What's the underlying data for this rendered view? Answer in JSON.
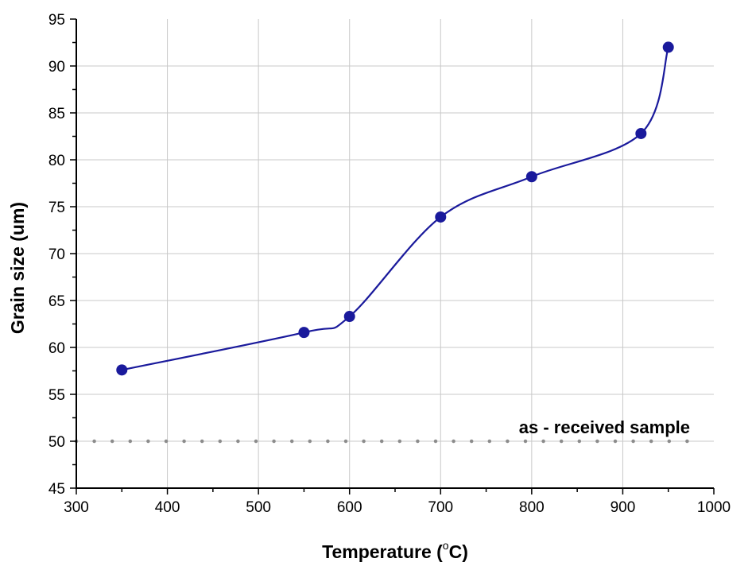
{
  "chart_data": {
    "type": "line",
    "xlabel": "Temperature (",
    "xlabel_sup": "o",
    "xlabel_end": "C)",
    "ylabel": "Grain size (um)",
    "xlim": [
      300,
      1000
    ],
    "ylim": [
      45,
      95
    ],
    "x_ticks": [
      300,
      400,
      500,
      600,
      700,
      800,
      900,
      1000
    ],
    "y_ticks": [
      45,
      50,
      55,
      60,
      65,
      70,
      75,
      80,
      85,
      90,
      95
    ],
    "grid": true,
    "series": [
      {
        "name": "",
        "color": "#1a1a9c",
        "x": [
          350,
          550,
          600,
          700,
          800,
          920,
          950
        ],
        "y": [
          57.6,
          61.6,
          63.3,
          73.9,
          78.2,
          82.8,
          92.0
        ]
      }
    ],
    "reference_line": {
      "y": 50,
      "x_start": 300,
      "x_end": 975,
      "color": "#8c8c8c",
      "label": "as - received sample"
    }
  }
}
